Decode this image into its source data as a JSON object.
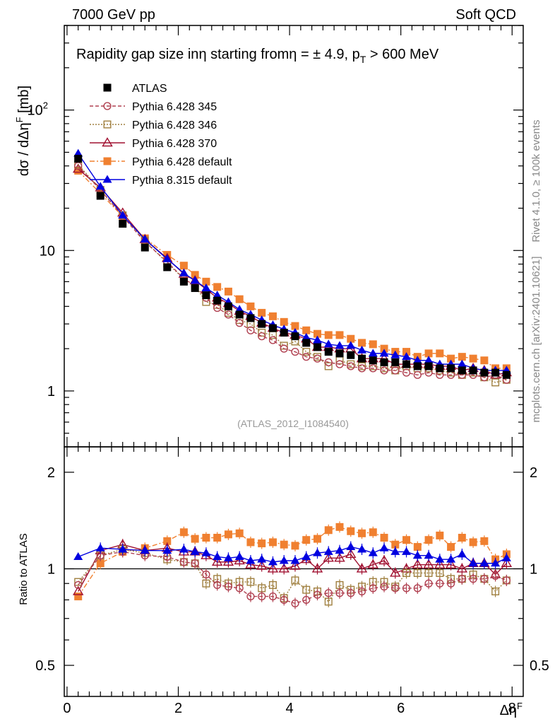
{
  "header": {
    "left": "7000 GeV pp",
    "right": "Soft QCD"
  },
  "side_text": {
    "rivet": "Rivet 4.1.0, ≥ 100k events",
    "mcplots": "mcplots.cern.ch [arXiv:2401.10621]"
  },
  "chart_data": [
    {
      "type": "line",
      "panel": "main",
      "title": "Rapidity gap size in η starting from η = ± 4.9, p_T > 600 MeV",
      "title_parts": {
        "a": "Rapidity gap size in",
        "b": "η starting from",
        "c": "η = ± 4.9, p",
        "sub": "T",
        "d": " > 600 MeV"
      },
      "ylabel": "dσ / dΔηF [mb]",
      "ylabel_parts": {
        "a": "dσ / dΔη",
        "sup": "F",
        "b": " [mb]"
      },
      "yscale": "log",
      "ylim": [
        0.4,
        400
      ],
      "xlim": [
        -0.05,
        8.2
      ],
      "yticks": [
        {
          "v": 1,
          "label": "1"
        },
        {
          "v": 10,
          "label": "10"
        },
        {
          "v": 100,
          "label": "10",
          "sup": "2"
        }
      ],
      "watermark": "(ATLAS_2012_I1084540)",
      "legend_position": "top-left",
      "x": [
        0.2,
        0.6,
        1.0,
        1.4,
        1.8,
        2.1,
        2.3,
        2.5,
        2.7,
        2.9,
        3.1,
        3.3,
        3.5,
        3.7,
        3.9,
        4.1,
        4.3,
        4.5,
        4.7,
        4.9,
        5.1,
        5.3,
        5.5,
        5.7,
        5.9,
        6.1,
        6.3,
        6.5,
        6.7,
        6.9,
        7.1,
        7.3,
        7.5,
        7.7,
        7.9
      ],
      "series": [
        {
          "name": "ATLAS",
          "color": "#000000",
          "marker": "square-filled",
          "line": "none",
          "values": [
            45,
            24.5,
            15.5,
            10.5,
            7.6,
            6.0,
            5.4,
            4.8,
            4.4,
            4.0,
            3.5,
            3.3,
            3.0,
            2.8,
            2.6,
            2.45,
            2.2,
            2.05,
            1.9,
            1.85,
            1.8,
            1.7,
            1.65,
            1.6,
            1.6,
            1.55,
            1.5,
            1.5,
            1.45,
            1.45,
            1.4,
            1.4,
            1.35,
            1.35,
            1.3
          ]
        },
        {
          "name": "Pythia 6.428 345",
          "color": "#b04050",
          "marker": "circle-open",
          "line": "dashed",
          "values": [
            40,
            27,
            17.5,
            11.5,
            8.3,
            6.3,
            5.6,
            4.6,
            3.9,
            3.5,
            3.05,
            2.7,
            2.45,
            2.3,
            2.0,
            1.9,
            1.75,
            1.7,
            1.6,
            1.55,
            1.5,
            1.45,
            1.45,
            1.4,
            1.4,
            1.35,
            1.3,
            1.35,
            1.3,
            1.3,
            1.3,
            1.3,
            1.25,
            1.3,
            1.2
          ]
        },
        {
          "name": "Pythia 6.428 346",
          "color": "#a08040",
          "marker": "square-open",
          "line": "dotted",
          "values": [
            41,
            27,
            17.8,
            11.8,
            8.1,
            6.3,
            5.6,
            4.3,
            4.1,
            3.6,
            3.2,
            3.0,
            2.6,
            2.5,
            2.1,
            2.25,
            1.9,
            1.75,
            1.5,
            1.65,
            1.55,
            1.5,
            1.5,
            1.45,
            1.4,
            1.5,
            1.45,
            1.45,
            1.4,
            1.35,
            1.3,
            1.35,
            1.25,
            1.15,
            1.2
          ]
        },
        {
          "name": "Pythia 6.428 370",
          "color": "#a01030",
          "marker": "triangle-open",
          "line": "solid",
          "values": [
            38,
            28,
            18.5,
            12,
            8.8,
            6.8,
            6.1,
            5.3,
            4.6,
            4.2,
            3.7,
            3.4,
            3.05,
            2.8,
            2.6,
            2.5,
            2.35,
            2.05,
            2.05,
            2.0,
            2.0,
            1.7,
            1.7,
            1.7,
            1.55,
            1.55,
            1.55,
            1.55,
            1.5,
            1.5,
            1.4,
            1.45,
            1.4,
            1.3,
            1.35
          ]
        },
        {
          "name": "Pythia 6.428 default",
          "color": "#f08030",
          "marker": "square-filled",
          "line": "dashdot",
          "values": [
            37,
            25.5,
            17.5,
            12.2,
            9.3,
            7.8,
            6.7,
            6.0,
            5.5,
            5.1,
            4.5,
            4.0,
            3.6,
            3.4,
            3.1,
            2.9,
            2.7,
            2.55,
            2.5,
            2.5,
            2.35,
            2.2,
            2.15,
            2.0,
            1.9,
            1.9,
            1.75,
            1.85,
            1.85,
            1.7,
            1.75,
            1.7,
            1.65,
            1.45,
            1.45
          ]
        },
        {
          "name": "Pythia 8.315 default",
          "color": "#0000e0",
          "marker": "triangle-filled",
          "line": "solid",
          "values": [
            49,
            28.5,
            17.8,
            12.0,
            8.7,
            6.9,
            6.1,
            5.4,
            4.8,
            4.3,
            3.8,
            3.5,
            3.2,
            2.95,
            2.75,
            2.6,
            2.4,
            2.3,
            2.15,
            2.1,
            2.1,
            1.95,
            1.85,
            1.85,
            1.8,
            1.75,
            1.65,
            1.65,
            1.55,
            1.55,
            1.55,
            1.45,
            1.4,
            1.4,
            1.4
          ]
        }
      ]
    },
    {
      "type": "line",
      "panel": "ratio",
      "ylabel": "Ratio to ATLAS",
      "xlabel": "ΔηF",
      "xlabel_parts": {
        "a": "Δη",
        "sup": "F"
      },
      "yscale": "log",
      "ylim": [
        0.4,
        2.4
      ],
      "yticks": [
        {
          "v": 0.5,
          "label": "0.5"
        },
        {
          "v": 1,
          "label": "1"
        },
        {
          "v": 2,
          "label": "2"
        }
      ],
      "xticks": [
        {
          "v": 0,
          "label": "0"
        },
        {
          "v": 2,
          "label": "2"
        },
        {
          "v": 4,
          "label": "4"
        },
        {
          "v": 6,
          "label": "6"
        },
        {
          "v": 8,
          "label": "8"
        }
      ],
      "reference": 1,
      "series": [
        {
          "name": "Pythia 6.428 345",
          "values": [
            0.89,
            1.1,
            1.13,
            1.1,
            1.09,
            1.05,
            1.04,
            0.96,
            0.89,
            0.88,
            0.87,
            0.82,
            0.82,
            0.82,
            0.8,
            0.78,
            0.8,
            0.83,
            0.84,
            0.84,
            0.84,
            0.85,
            0.87,
            0.88,
            0.87,
            0.87,
            0.87,
            0.9,
            0.9,
            0.9,
            0.93,
            0.93,
            0.93,
            0.95,
            0.92
          ]
        },
        {
          "name": "Pythia 6.428 346",
          "values": [
            0.91,
            1.1,
            1.15,
            1.12,
            1.07,
            1.05,
            1.04,
            0.9,
            0.93,
            0.9,
            0.91,
            0.91,
            0.87,
            0.89,
            0.81,
            0.92,
            0.86,
            0.85,
            0.79,
            0.89,
            0.86,
            0.88,
            0.91,
            0.91,
            0.88,
            0.97,
            0.97,
            0.97,
            0.97,
            0.93,
            0.93,
            0.96,
            0.93,
            0.85,
            0.92
          ]
        },
        {
          "name": "Pythia 6.428 370",
          "values": [
            0.85,
            1.14,
            1.19,
            1.14,
            1.16,
            1.13,
            1.13,
            1.1,
            1.05,
            1.05,
            1.06,
            1.03,
            1.02,
            1.0,
            1.0,
            1.02,
            1.07,
            1.0,
            1.08,
            1.08,
            1.11,
            1.0,
            1.03,
            1.06,
            0.97,
            1.0,
            1.03,
            1.03,
            1.03,
            1.03,
            1.0,
            1.04,
            1.04,
            0.96,
            1.04
          ]
        },
        {
          "name": "Pythia 6.428 default",
          "values": [
            0.82,
            1.04,
            1.13,
            1.16,
            1.22,
            1.3,
            1.24,
            1.25,
            1.25,
            1.28,
            1.29,
            1.21,
            1.2,
            1.21,
            1.19,
            1.18,
            1.23,
            1.24,
            1.32,
            1.35,
            1.31,
            1.29,
            1.3,
            1.25,
            1.19,
            1.23,
            1.17,
            1.23,
            1.27,
            1.17,
            1.25,
            1.21,
            1.22,
            1.07,
            1.11
          ]
        },
        {
          "name": "Pythia 8.315 default",
          "values": [
            1.09,
            1.16,
            1.15,
            1.14,
            1.14,
            1.15,
            1.13,
            1.12,
            1.09,
            1.08,
            1.09,
            1.06,
            1.07,
            1.05,
            1.06,
            1.06,
            1.09,
            1.12,
            1.13,
            1.14,
            1.17,
            1.15,
            1.12,
            1.16,
            1.13,
            1.13,
            1.1,
            1.1,
            1.07,
            1.07,
            1.11,
            1.04,
            1.04,
            1.04,
            1.08
          ]
        }
      ]
    }
  ]
}
